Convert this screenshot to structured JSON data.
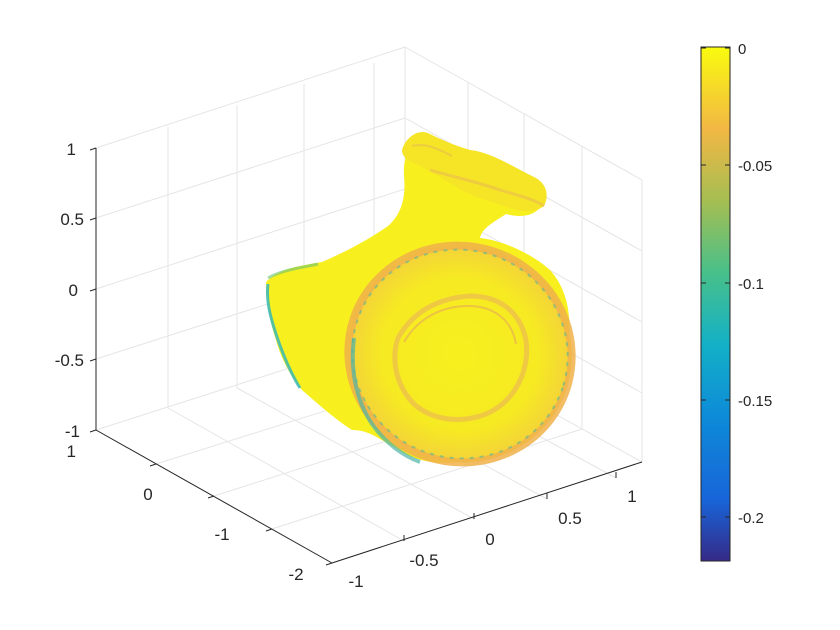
{
  "chart_data": {
    "type": "surface",
    "title": "",
    "xlabel": "",
    "ylabel": "",
    "zlabel": "",
    "grid": true,
    "view": "3d-isometric",
    "x_ticks": [
      "-1",
      "-0.5",
      "0",
      "0.5",
      "1"
    ],
    "y_ticks": [
      "-2",
      "-1",
      "0",
      "1"
    ],
    "z_ticks": [
      "-1",
      "-0.5",
      "0",
      "0.5",
      "1"
    ],
    "colorbar": {
      "position": "right",
      "colormap": "parula",
      "range": [
        -0.22,
        0
      ],
      "ticks": [
        "0",
        "-0.05",
        "-0.1",
        "-0.15",
        "-0.2"
      ]
    },
    "surface": {
      "description_colors": {
        "dominant": "#f7f01e",
        "rim_orange": "#f2b447",
        "edge_cyan": "#24b2c2",
        "edge_green": "#8cc63f"
      }
    }
  }
}
